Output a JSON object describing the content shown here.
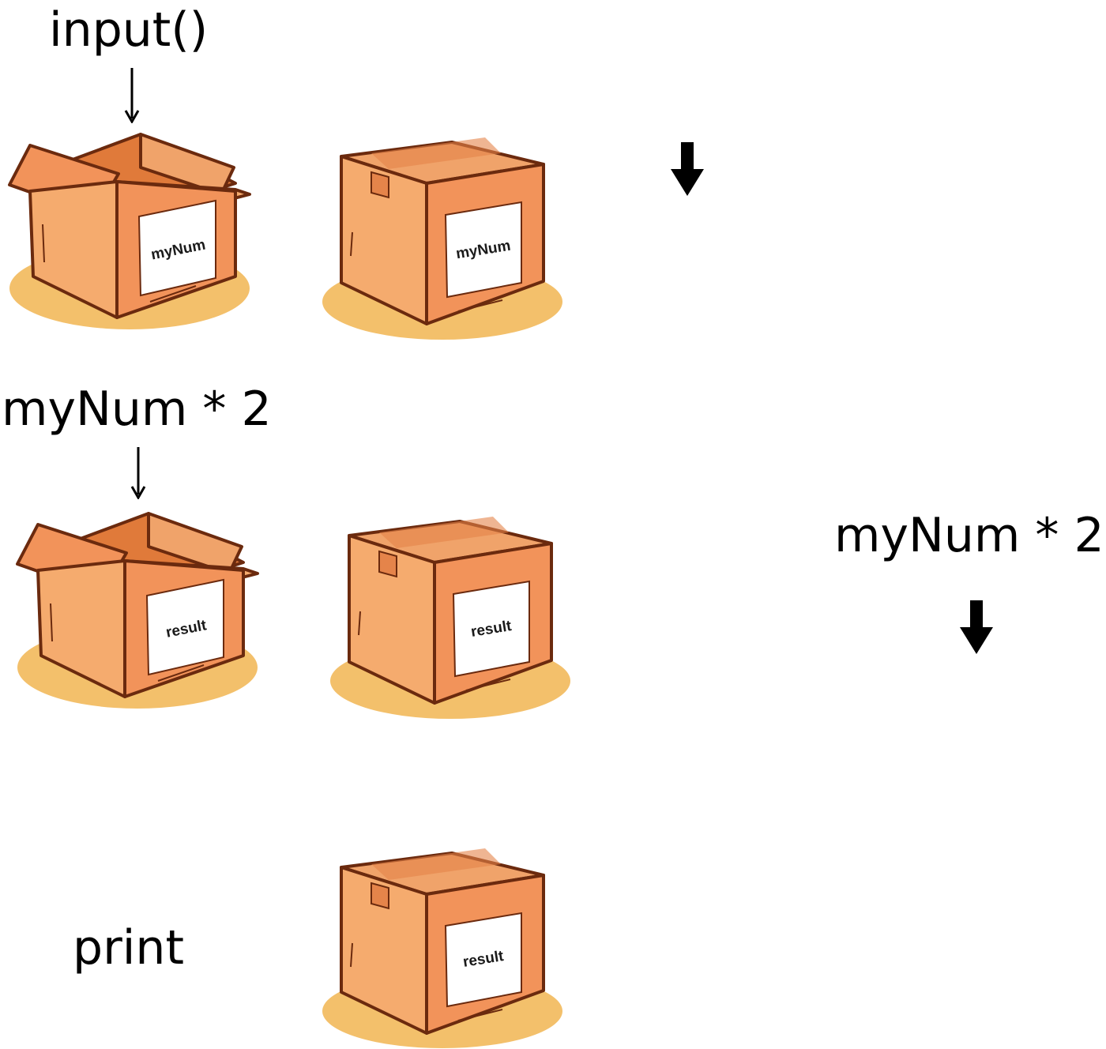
{
  "labels": {
    "step1": "input()",
    "step2": "myNum * 2",
    "step2_side": "myNum * 2",
    "step3": "print"
  },
  "boxes": {
    "row1_open": "myNum",
    "row1_closed": "myNum",
    "row2_open": "result",
    "row2_closed": "result",
    "row3_closed": "result"
  },
  "colors": {
    "box_front": "#f2935a",
    "box_side": "#f5ab6e",
    "box_top": "#f0a36a",
    "box_inside": "#e07a3a",
    "outline": "#6b2a0e",
    "shadow": "#f3c06b",
    "label_bg": "#ffffff",
    "tape": "#e5844a"
  },
  "icons": [
    "thin-down-arrow-icon",
    "bold-down-arrow-icon"
  ]
}
